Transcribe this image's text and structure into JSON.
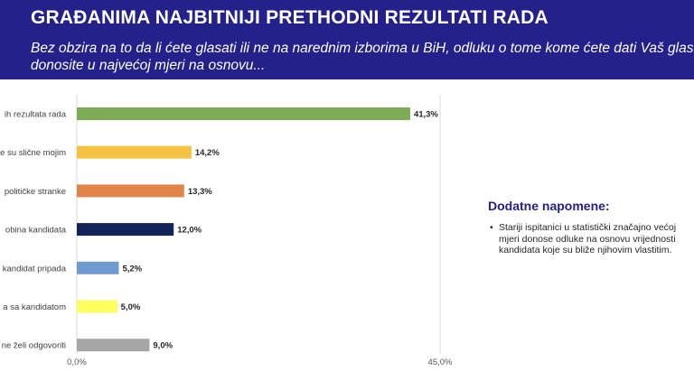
{
  "header": {
    "title": "GRAĐANIMA NAJBITNIJI PRETHODNI REZULTATI RADA",
    "subtitle": "Bez obzira na to da li ćete glasati ili ne na narednim izborima u BiH, odluku o tome kome ćete dati Vaš glas donosite u najvećoj mjeri na osnovu..."
  },
  "chart_data": {
    "type": "bar",
    "orientation": "horizontal",
    "categories": [
      "ih rezultata rada",
      "e su slične mojim",
      "političke stranke",
      "obina kandidata",
      "kandidat pripada",
      "a sa kandidatom",
      "ne želi odgovoriti"
    ],
    "values": [
      41.3,
      14.2,
      13.3,
      12.0,
      5.2,
      5.0,
      9.0
    ],
    "value_labels": [
      "41,3%",
      "14,2%",
      "13,3%",
      "12,0%",
      "5,2%",
      "5,0%",
      "9,0%"
    ],
    "colors": [
      "#7eab55",
      "#f5c243",
      "#e0844a",
      "#142359",
      "#6f9bd0",
      "#fdfd5e",
      "#a6a6a6"
    ],
    "xlim": [
      0,
      45
    ],
    "x_tick_labels": [
      "0,0%",
      "45,0%"
    ],
    "grid": true
  },
  "notes": {
    "title": "Dodatne napomene:",
    "items": [
      "Stariji ispitanici u statistički značajno većoj mjeri donose odluke na osnovu vrijednosti kandidata koje su bliže njihovim vlastitim."
    ]
  }
}
